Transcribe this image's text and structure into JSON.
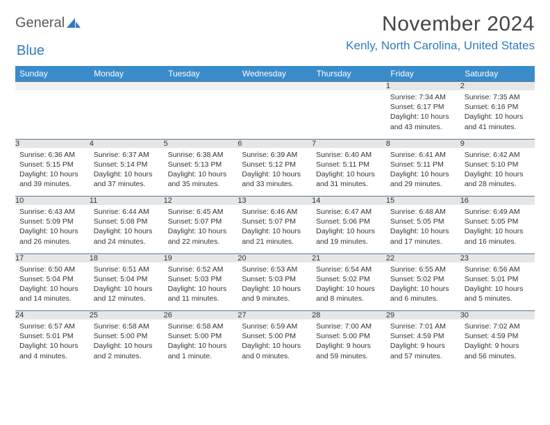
{
  "brand": {
    "word1": "General",
    "word2": "Blue"
  },
  "title": "November 2024",
  "location": "Kenly, North Carolina, United States",
  "colors": {
    "header_bg": "#3a8bc9",
    "header_fg": "#ffffff",
    "accent": "#2f7bbf",
    "daynum_bg": "#e6e6e6",
    "rule": "#5a7a94",
    "text": "#333333",
    "page_bg": "#ffffff"
  },
  "day_headers": [
    "Sunday",
    "Monday",
    "Tuesday",
    "Wednesday",
    "Thursday",
    "Friday",
    "Saturday"
  ],
  "weeks": [
    [
      {
        "n": "",
        "sr": "",
        "ss": "",
        "dl": ""
      },
      {
        "n": "",
        "sr": "",
        "ss": "",
        "dl": ""
      },
      {
        "n": "",
        "sr": "",
        "ss": "",
        "dl": ""
      },
      {
        "n": "",
        "sr": "",
        "ss": "",
        "dl": ""
      },
      {
        "n": "",
        "sr": "",
        "ss": "",
        "dl": ""
      },
      {
        "n": "1",
        "sr": "Sunrise: 7:34 AM",
        "ss": "Sunset: 6:17 PM",
        "dl": "Daylight: 10 hours and 43 minutes."
      },
      {
        "n": "2",
        "sr": "Sunrise: 7:35 AM",
        "ss": "Sunset: 6:16 PM",
        "dl": "Daylight: 10 hours and 41 minutes."
      }
    ],
    [
      {
        "n": "3",
        "sr": "Sunrise: 6:36 AM",
        "ss": "Sunset: 5:15 PM",
        "dl": "Daylight: 10 hours and 39 minutes."
      },
      {
        "n": "4",
        "sr": "Sunrise: 6:37 AM",
        "ss": "Sunset: 5:14 PM",
        "dl": "Daylight: 10 hours and 37 minutes."
      },
      {
        "n": "5",
        "sr": "Sunrise: 6:38 AM",
        "ss": "Sunset: 5:13 PM",
        "dl": "Daylight: 10 hours and 35 minutes."
      },
      {
        "n": "6",
        "sr": "Sunrise: 6:39 AM",
        "ss": "Sunset: 5:12 PM",
        "dl": "Daylight: 10 hours and 33 minutes."
      },
      {
        "n": "7",
        "sr": "Sunrise: 6:40 AM",
        "ss": "Sunset: 5:11 PM",
        "dl": "Daylight: 10 hours and 31 minutes."
      },
      {
        "n": "8",
        "sr": "Sunrise: 6:41 AM",
        "ss": "Sunset: 5:11 PM",
        "dl": "Daylight: 10 hours and 29 minutes."
      },
      {
        "n": "9",
        "sr": "Sunrise: 6:42 AM",
        "ss": "Sunset: 5:10 PM",
        "dl": "Daylight: 10 hours and 28 minutes."
      }
    ],
    [
      {
        "n": "10",
        "sr": "Sunrise: 6:43 AM",
        "ss": "Sunset: 5:09 PM",
        "dl": "Daylight: 10 hours and 26 minutes."
      },
      {
        "n": "11",
        "sr": "Sunrise: 6:44 AM",
        "ss": "Sunset: 5:08 PM",
        "dl": "Daylight: 10 hours and 24 minutes."
      },
      {
        "n": "12",
        "sr": "Sunrise: 6:45 AM",
        "ss": "Sunset: 5:07 PM",
        "dl": "Daylight: 10 hours and 22 minutes."
      },
      {
        "n": "13",
        "sr": "Sunrise: 6:46 AM",
        "ss": "Sunset: 5:07 PM",
        "dl": "Daylight: 10 hours and 21 minutes."
      },
      {
        "n": "14",
        "sr": "Sunrise: 6:47 AM",
        "ss": "Sunset: 5:06 PM",
        "dl": "Daylight: 10 hours and 19 minutes."
      },
      {
        "n": "15",
        "sr": "Sunrise: 6:48 AM",
        "ss": "Sunset: 5:05 PM",
        "dl": "Daylight: 10 hours and 17 minutes."
      },
      {
        "n": "16",
        "sr": "Sunrise: 6:49 AM",
        "ss": "Sunset: 5:05 PM",
        "dl": "Daylight: 10 hours and 16 minutes."
      }
    ],
    [
      {
        "n": "17",
        "sr": "Sunrise: 6:50 AM",
        "ss": "Sunset: 5:04 PM",
        "dl": "Daylight: 10 hours and 14 minutes."
      },
      {
        "n": "18",
        "sr": "Sunrise: 6:51 AM",
        "ss": "Sunset: 5:04 PM",
        "dl": "Daylight: 10 hours and 12 minutes."
      },
      {
        "n": "19",
        "sr": "Sunrise: 6:52 AM",
        "ss": "Sunset: 5:03 PM",
        "dl": "Daylight: 10 hours and 11 minutes."
      },
      {
        "n": "20",
        "sr": "Sunrise: 6:53 AM",
        "ss": "Sunset: 5:03 PM",
        "dl": "Daylight: 10 hours and 9 minutes."
      },
      {
        "n": "21",
        "sr": "Sunrise: 6:54 AM",
        "ss": "Sunset: 5:02 PM",
        "dl": "Daylight: 10 hours and 8 minutes."
      },
      {
        "n": "22",
        "sr": "Sunrise: 6:55 AM",
        "ss": "Sunset: 5:02 PM",
        "dl": "Daylight: 10 hours and 6 minutes."
      },
      {
        "n": "23",
        "sr": "Sunrise: 6:56 AM",
        "ss": "Sunset: 5:01 PM",
        "dl": "Daylight: 10 hours and 5 minutes."
      }
    ],
    [
      {
        "n": "24",
        "sr": "Sunrise: 6:57 AM",
        "ss": "Sunset: 5:01 PM",
        "dl": "Daylight: 10 hours and 4 minutes."
      },
      {
        "n": "25",
        "sr": "Sunrise: 6:58 AM",
        "ss": "Sunset: 5:00 PM",
        "dl": "Daylight: 10 hours and 2 minutes."
      },
      {
        "n": "26",
        "sr": "Sunrise: 6:58 AM",
        "ss": "Sunset: 5:00 PM",
        "dl": "Daylight: 10 hours and 1 minute."
      },
      {
        "n": "27",
        "sr": "Sunrise: 6:59 AM",
        "ss": "Sunset: 5:00 PM",
        "dl": "Daylight: 10 hours and 0 minutes."
      },
      {
        "n": "28",
        "sr": "Sunrise: 7:00 AM",
        "ss": "Sunset: 5:00 PM",
        "dl": "Daylight: 9 hours and 59 minutes."
      },
      {
        "n": "29",
        "sr": "Sunrise: 7:01 AM",
        "ss": "Sunset: 4:59 PM",
        "dl": "Daylight: 9 hours and 57 minutes."
      },
      {
        "n": "30",
        "sr": "Sunrise: 7:02 AM",
        "ss": "Sunset: 4:59 PM",
        "dl": "Daylight: 9 hours and 56 minutes."
      }
    ]
  ]
}
